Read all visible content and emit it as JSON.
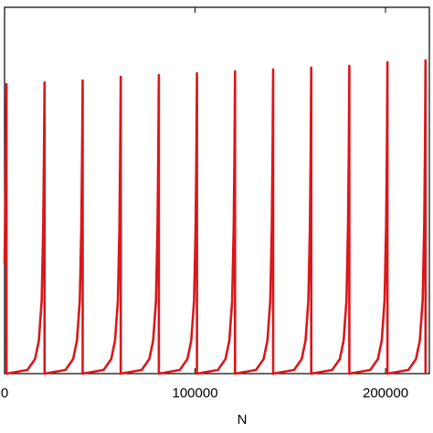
{
  "chart_data": {
    "type": "line",
    "x_label": "N",
    "xlim": [
      0,
      223000
    ],
    "ylim": [
      0,
      1
    ],
    "xticks": [
      0,
      100000,
      200000
    ],
    "series": [
      {
        "color": "#d8181c",
        "x": [
          0,
          500,
          1000,
          1000,
          12000,
          16000,
          18000,
          19500,
          20300,
          20700,
          21000,
          21000,
          32000,
          36000,
          38000,
          39500,
          40300,
          40700,
          41000,
          41000,
          52000,
          56000,
          58000,
          59500,
          60300,
          60700,
          61000,
          61000,
          72000,
          76000,
          78000,
          79500,
          80300,
          80700,
          81000,
          81000,
          92000,
          96000,
          98000,
          99500,
          100300,
          100700,
          101000,
          101000,
          112000,
          116000,
          118000,
          119500,
          120300,
          120700,
          121000,
          121000,
          132000,
          136000,
          138000,
          139500,
          140300,
          140700,
          141000,
          141000,
          152000,
          156000,
          158000,
          159500,
          160300,
          160700,
          161000,
          161000,
          172000,
          176000,
          178000,
          179500,
          180300,
          180700,
          181000,
          181000,
          192000,
          196000,
          198000,
          199500,
          200300,
          200700,
          201000,
          201000,
          212000,
          216000,
          218000,
          219500,
          220300,
          220700,
          221000,
          221000
        ],
        "values": [
          0.3,
          0.5,
          0.79,
          0,
          0.01,
          0.04,
          0.09,
          0.2,
          0.4,
          0.6,
          0.795,
          0,
          0.01,
          0.04,
          0.09,
          0.2,
          0.4,
          0.6,
          0.8,
          0,
          0.01,
          0.04,
          0.09,
          0.2,
          0.4,
          0.6,
          0.81,
          0,
          0.01,
          0.04,
          0.09,
          0.2,
          0.4,
          0.6,
          0.815,
          0,
          0.01,
          0.04,
          0.09,
          0.2,
          0.4,
          0.6,
          0.82,
          0,
          0.01,
          0.04,
          0.09,
          0.2,
          0.4,
          0.6,
          0.825,
          0,
          0.01,
          0.04,
          0.09,
          0.2,
          0.4,
          0.6,
          0.83,
          0,
          0.01,
          0.04,
          0.09,
          0.2,
          0.4,
          0.6,
          0.835,
          0,
          0.01,
          0.04,
          0.09,
          0.2,
          0.4,
          0.6,
          0.84,
          0,
          0.01,
          0.04,
          0.09,
          0.2,
          0.4,
          0.6,
          0.85,
          0,
          0.01,
          0.04,
          0.09,
          0.2,
          0.4,
          0.6,
          0.855,
          0
        ]
      }
    ]
  }
}
